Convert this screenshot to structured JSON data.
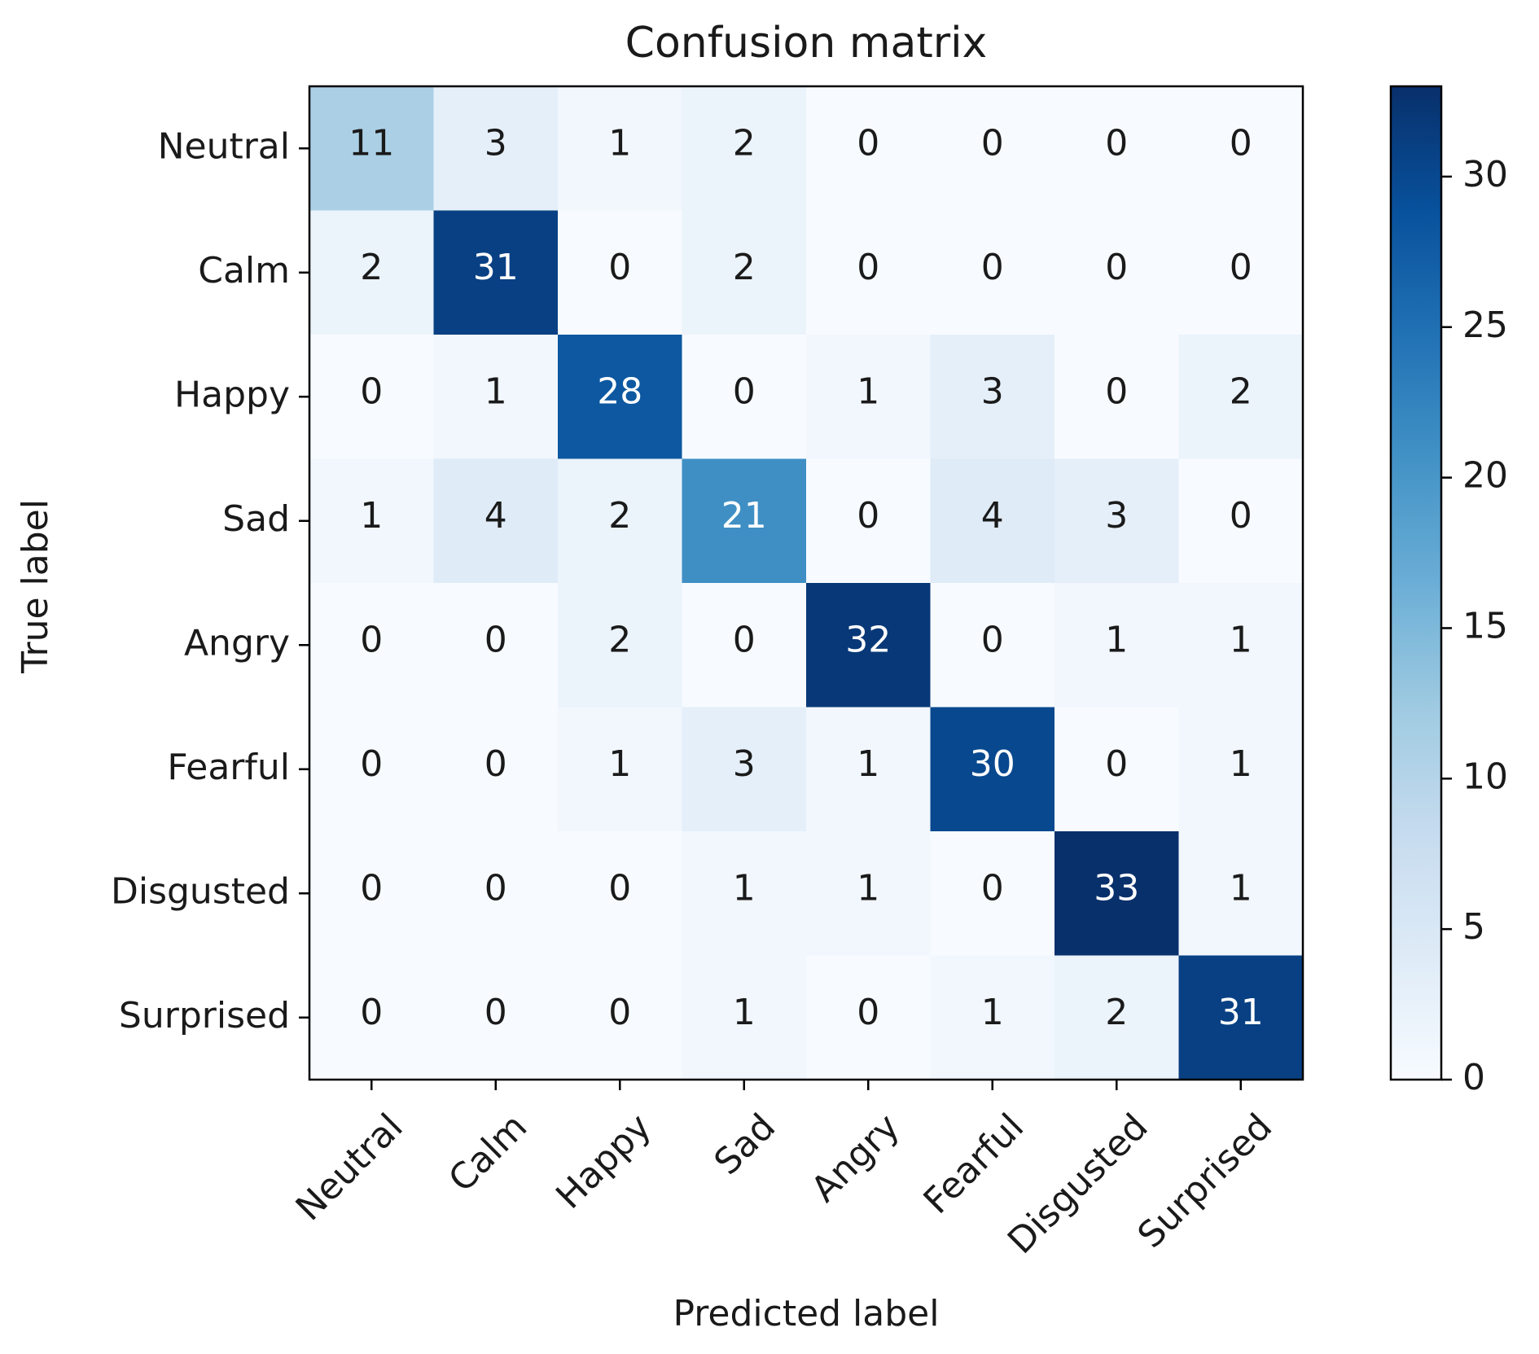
{
  "chart_data": {
    "type": "heatmap",
    "title": "Confusion matrix",
    "xlabel": "Predicted label",
    "ylabel": "True label",
    "labels": [
      "Neutral",
      "Calm",
      "Happy",
      "Sad",
      "Angry",
      "Fearful",
      "Disgusted",
      "Surprised"
    ],
    "matrix": [
      [
        11,
        3,
        1,
        2,
        0,
        0,
        0,
        0
      ],
      [
        2,
        31,
        0,
        2,
        0,
        0,
        0,
        0
      ],
      [
        0,
        1,
        28,
        0,
        1,
        3,
        0,
        2
      ],
      [
        1,
        4,
        2,
        21,
        0,
        4,
        3,
        0
      ],
      [
        0,
        0,
        2,
        0,
        32,
        0,
        1,
        1
      ],
      [
        0,
        0,
        1,
        3,
        1,
        30,
        0,
        1
      ],
      [
        0,
        0,
        0,
        1,
        1,
        0,
        33,
        1
      ],
      [
        0,
        0,
        0,
        1,
        0,
        1,
        2,
        31
      ]
    ],
    "colormap": "Blues",
    "colorbar": {
      "range": [
        0,
        33
      ],
      "ticks": [
        0,
        5,
        10,
        15,
        20,
        25,
        30
      ]
    },
    "colors": {
      "low": "#f7fbff",
      "high": "#08306b",
      "text_dark": "#1a1a1a",
      "text_light": "#ffffff"
    },
    "grid": false
  }
}
